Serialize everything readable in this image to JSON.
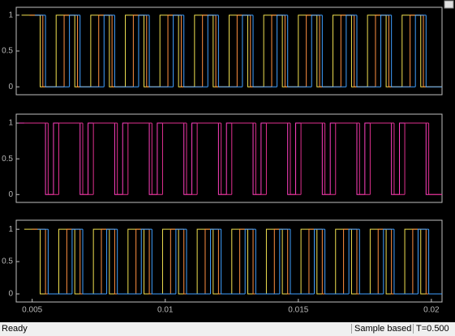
{
  "chart_data": [
    {
      "type": "step",
      "xlim": [
        0.0044,
        0.0204
      ],
      "ylim": [
        -0.11,
        1.11
      ],
      "yticks": [
        0,
        0.5,
        1
      ],
      "series": [
        {
          "color": "#f0e050",
          "x": [
            0.0046,
            0.0053,
            0.0059,
            0.0066,
            0.0072,
            0.0079,
            0.0085,
            0.0092,
            0.0098,
            0.0105,
            0.0111,
            0.0118,
            0.0124,
            0.0131,
            0.0137,
            0.0144,
            0.015,
            0.0157,
            0.0163,
            0.017,
            0.0176,
            0.0183,
            0.0189,
            0.0196
          ],
          "values": [
            1,
            0,
            1,
            0,
            1,
            0,
            1,
            0,
            1,
            0,
            1,
            0,
            1,
            0,
            1,
            0,
            1,
            0,
            1,
            0,
            1,
            0,
            1,
            0
          ]
        },
        {
          "color": "#ff9040",
          "x": [
            0.0049,
            0.0054,
            0.0062,
            0.0067,
            0.0075,
            0.008,
            0.0088,
            0.0093,
            0.0101,
            0.0106,
            0.0114,
            0.0119,
            0.0127,
            0.0132,
            0.014,
            0.0145,
            0.0153,
            0.0158,
            0.0166,
            0.0171,
            0.0179,
            0.0184,
            0.0192,
            0.0197
          ],
          "values": [
            1,
            0,
            1,
            0,
            1,
            0,
            1,
            0,
            1,
            0,
            1,
            0,
            1,
            0,
            1,
            0,
            1,
            0,
            1,
            0,
            1,
            0,
            1,
            0
          ]
        },
        {
          "color": "#40a0ff",
          "x": [
            0.0051,
            0.0055,
            0.0064,
            0.0068,
            0.0077,
            0.0081,
            0.009,
            0.0094,
            0.0103,
            0.0107,
            0.0116,
            0.012,
            0.0129,
            0.0133,
            0.0142,
            0.0146,
            0.0155,
            0.0159,
            0.0168,
            0.0172,
            0.0181,
            0.0185,
            0.0194,
            0.0198
          ],
          "values": [
            1,
            0,
            1,
            0,
            1,
            0,
            1,
            0,
            1,
            0,
            1,
            0,
            1,
            0,
            1,
            0,
            1,
            0,
            1,
            0,
            1,
            0,
            1,
            0
          ]
        }
      ]
    },
    {
      "type": "step",
      "xlim": [
        0.0044,
        0.0204
      ],
      "ylim": [
        -0.11,
        1.125
      ],
      "yticks": [
        0,
        0.5,
        1
      ],
      "series": [
        {
          "color": "#ff40c0",
          "x": [
            0.0045,
            0.0055,
            0.0058,
            0.0068,
            0.0071,
            0.0081,
            0.0084,
            0.0094,
            0.0097,
            0.0107,
            0.011,
            0.012,
            0.0123,
            0.0133,
            0.0136,
            0.0146,
            0.0149,
            0.0159,
            0.0162,
            0.0172,
            0.0175,
            0.0185,
            0.0188,
            0.0198
          ],
          "values": [
            1,
            0,
            1,
            0,
            1,
            0,
            1,
            0,
            1,
            0,
            1,
            0,
            1,
            0,
            1,
            0,
            1,
            0,
            1,
            0,
            1,
            0,
            1,
            0
          ]
        },
        {
          "color": "#e03090",
          "x": [
            0.0047,
            0.0056,
            0.006,
            0.0069,
            0.0073,
            0.0082,
            0.0086,
            0.0095,
            0.0099,
            0.0108,
            0.0112,
            0.0121,
            0.0125,
            0.0134,
            0.0138,
            0.0147,
            0.0151,
            0.016,
            0.0164,
            0.0173,
            0.0177,
            0.0186,
            0.019,
            0.0199
          ],
          "values": [
            1,
            0,
            1,
            0,
            1,
            0,
            1,
            0,
            1,
            0,
            1,
            0,
            1,
            0,
            1,
            0,
            1,
            0,
            1,
            0,
            1,
            0,
            1,
            0
          ]
        }
      ]
    },
    {
      "type": "step",
      "xlim": [
        0.0044,
        0.0204
      ],
      "ylim": [
        -0.125,
        1.14
      ],
      "yticks": [
        0,
        0.5,
        1
      ],
      "xticks": [
        0.005,
        0.01,
        0.015,
        0.02
      ],
      "series": [
        {
          "color": "#f0e050",
          "x": [
            0.0047,
            0.0053,
            0.006,
            0.0066,
            0.0073,
            0.0079,
            0.0086,
            0.0092,
            0.0099,
            0.0105,
            0.0112,
            0.0118,
            0.0125,
            0.0131,
            0.0138,
            0.0144,
            0.0151,
            0.0157,
            0.0164,
            0.017,
            0.0177,
            0.0183,
            0.019,
            0.0196
          ],
          "values": [
            1,
            0,
            1,
            0,
            1,
            0,
            1,
            0,
            1,
            0,
            1,
            0,
            1,
            0,
            1,
            0,
            1,
            0,
            1,
            0,
            1,
            0,
            1,
            0
          ]
        },
        {
          "color": "#ff9040",
          "x": [
            0.005,
            0.0055,
            0.0063,
            0.0068,
            0.0076,
            0.0081,
            0.0089,
            0.0094,
            0.0102,
            0.0107,
            0.0115,
            0.012,
            0.0128,
            0.0133,
            0.0141,
            0.0146,
            0.0154,
            0.0159,
            0.0167,
            0.0172,
            0.018,
            0.0185,
            0.0193,
            0.0198
          ],
          "values": [
            1,
            0,
            1,
            0,
            1,
            0,
            1,
            0,
            1,
            0,
            1,
            0,
            1,
            0,
            1,
            0,
            1,
            0,
            1,
            0,
            1,
            0,
            1,
            0
          ]
        },
        {
          "color": "#40a0ff",
          "x": [
            0.0052,
            0.0056,
            0.0065,
            0.0069,
            0.0078,
            0.0082,
            0.0091,
            0.0095,
            0.0104,
            0.0108,
            0.0117,
            0.0121,
            0.013,
            0.0134,
            0.0143,
            0.0147,
            0.0156,
            0.016,
            0.0169,
            0.0173,
            0.0182,
            0.0186,
            0.0195,
            0.0199
          ],
          "values": [
            1,
            0,
            1,
            0,
            1,
            0,
            1,
            0,
            1,
            0,
            1,
            0,
            1,
            0,
            1,
            0,
            1,
            0,
            1,
            0,
            1,
            0,
            1,
            0
          ]
        }
      ]
    }
  ],
  "status_bar": {
    "status": "Ready",
    "mode": "Sample based",
    "time": "T=0.500"
  }
}
